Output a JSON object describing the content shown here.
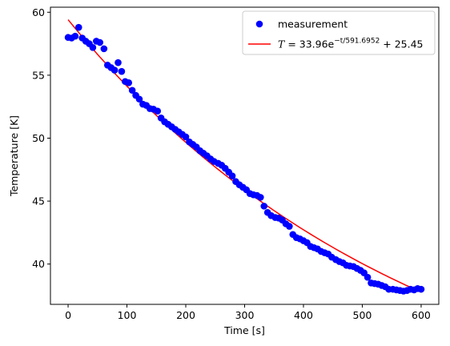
{
  "chart_data": {
    "type": "scatter",
    "xlabel": "Time [s]",
    "ylabel": "Temperature [K]",
    "xlim": [
      -30,
      630
    ],
    "ylim": [
      36.8,
      60.4
    ],
    "xticks": [
      0,
      100,
      200,
      300,
      400,
      500,
      600
    ],
    "yticks": [
      40,
      45,
      50,
      55,
      60
    ],
    "grid": false,
    "legend_position": "top-right",
    "series": [
      {
        "name": "measurement",
        "kind": "scatter",
        "color": "#0000ff",
        "x": [
          0,
          6,
          12,
          18,
          24,
          30,
          36,
          42,
          48,
          54,
          61,
          67,
          73,
          79,
          85,
          91,
          97,
          103,
          109,
          115,
          121,
          127,
          133,
          139,
          145,
          152,
          158,
          164,
          170,
          176,
          182,
          188,
          194,
          200,
          206,
          212,
          218,
          224,
          230,
          236,
          242,
          248,
          255,
          261,
          267,
          273,
          279,
          285,
          291,
          297,
          303,
          309,
          315,
          321,
          327,
          333,
          339,
          345,
          352,
          358,
          364,
          370,
          376,
          382,
          388,
          394,
          400,
          406,
          412,
          418,
          424,
          430,
          436,
          442,
          448,
          455,
          461,
          467,
          473,
          479,
          485,
          491,
          497,
          503,
          509,
          515,
          521,
          527,
          533,
          539,
          545,
          552,
          558,
          564,
          570,
          576,
          582,
          588,
          594,
          600
        ],
        "y": [
          58.0,
          57.95,
          58.1,
          58.8,
          57.95,
          57.7,
          57.5,
          57.2,
          57.7,
          57.6,
          57.1,
          55.8,
          55.6,
          55.4,
          56.0,
          55.3,
          54.5,
          54.4,
          53.8,
          53.4,
          53.1,
          52.7,
          52.6,
          52.35,
          52.3,
          52.15,
          51.6,
          51.3,
          51.1,
          50.9,
          50.7,
          50.5,
          50.3,
          50.1,
          49.7,
          49.5,
          49.3,
          49.0,
          48.8,
          48.6,
          48.35,
          48.15,
          48.0,
          47.85,
          47.6,
          47.3,
          47.0,
          46.55,
          46.3,
          46.1,
          45.9,
          45.6,
          45.5,
          45.45,
          45.3,
          44.6,
          44.1,
          43.85,
          43.7,
          43.65,
          43.5,
          43.2,
          43.0,
          42.35,
          42.1,
          42.0,
          41.85,
          41.7,
          41.4,
          41.3,
          41.2,
          41.0,
          40.9,
          40.8,
          40.55,
          40.35,
          40.2,
          40.1,
          39.9,
          39.85,
          39.8,
          39.65,
          39.5,
          39.3,
          38.95,
          38.5,
          38.45,
          38.4,
          38.3,
          38.2,
          38.0,
          38.0,
          37.95,
          37.9,
          37.85,
          37.9,
          38.0,
          37.95,
          38.05,
          38.0
        ]
      },
      {
        "name": "$T = 33.96e^{-t/591.6952} + 25.45$",
        "kind": "line",
        "color": "#ff0000",
        "model": {
          "a": 33.96,
          "tau": 591.6952,
          "c": 25.45
        },
        "t_range": [
          0,
          600
        ]
      }
    ],
    "legend": {
      "entries": [
        {
          "label": "measurement",
          "marker": "circle",
          "color": "#0000ff"
        },
        {
          "label_prefix": "T",
          "label_middle": " = 33.96e",
          "label_exp": "−t/591.6952",
          "label_suffix": " + 25.45",
          "marker": "line",
          "color": "#ff0000"
        }
      ]
    }
  }
}
